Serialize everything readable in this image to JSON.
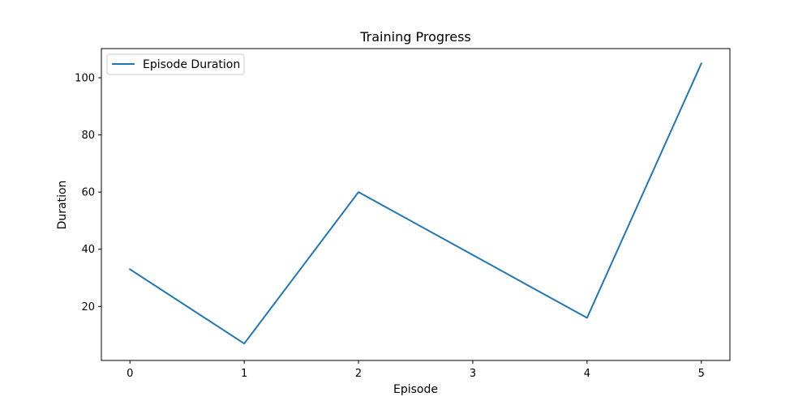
{
  "chart_data": {
    "type": "line",
    "title": "Training Progress",
    "xlabel": "Episode",
    "ylabel": "Duration",
    "x": [
      0,
      1,
      2,
      3,
      4,
      5
    ],
    "series": [
      {
        "name": "Episode Duration",
        "color": "#1f77b4",
        "values": [
          33,
          7,
          60,
          38,
          16,
          105
        ]
      }
    ],
    "xlim": [
      -0.25,
      5.25
    ],
    "ylim": [
      1.1,
      110.2
    ],
    "xticks": [
      0,
      1,
      2,
      3,
      4,
      5
    ],
    "xtick_labels": [
      "0",
      "1",
      "2",
      "3",
      "4",
      "5"
    ],
    "yticks": [
      20,
      40,
      60,
      80,
      100
    ],
    "ytick_labels": [
      "20",
      "40",
      "60",
      "80",
      "100"
    ],
    "grid": false,
    "legend_position": "upper-left"
  }
}
